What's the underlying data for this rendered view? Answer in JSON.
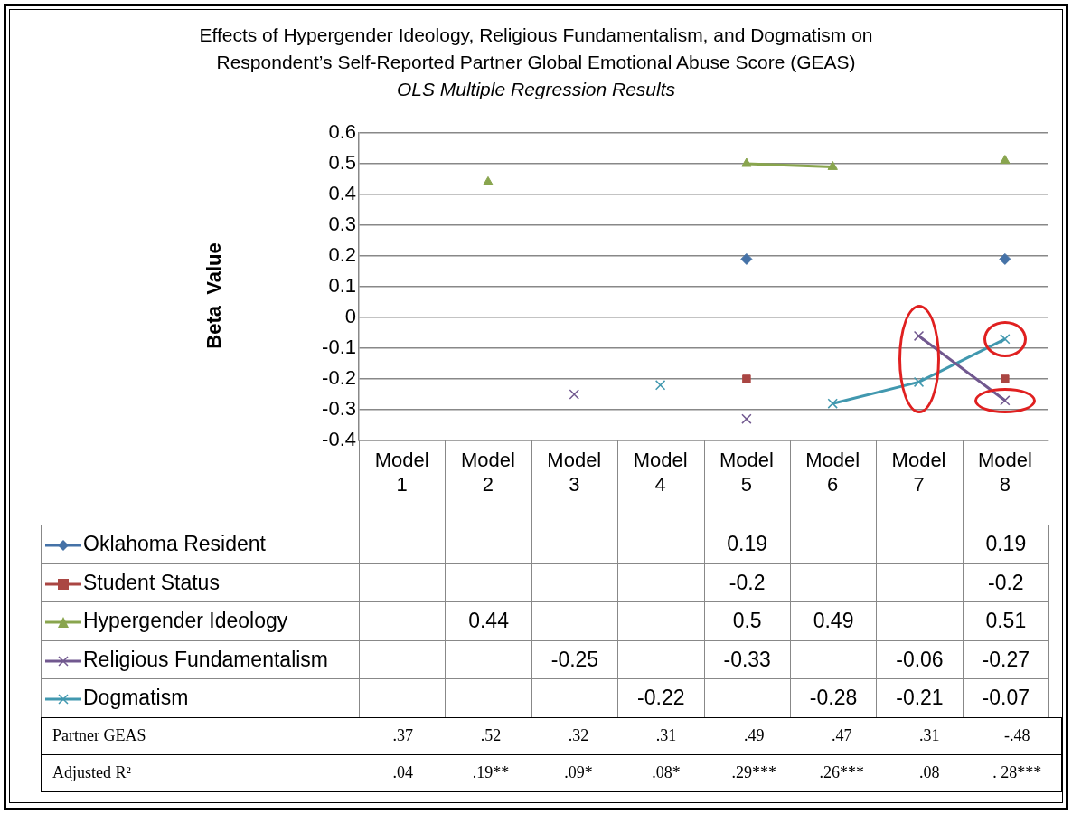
{
  "chart_data": {
    "type": "line",
    "title": "Effects of Hypergender Ideology, Religious Fundamentalism, and Dogmatism on Respondent’s Self-Reported Partner Global Emotional Abuse Score (GEAS)",
    "subtitle": "OLS Multiple Regression Results",
    "ylabel": "Beta  Value",
    "categories": [
      "Model 1",
      "Model 2",
      "Model 3",
      "Model 4",
      "Model 5",
      "Model 6",
      "Model 7",
      "Model 8"
    ],
    "series": [
      {
        "name": "Oklahoma Resident",
        "type": "scatter",
        "color": "#4572a7",
        "marker": "diamond",
        "values": [
          null,
          null,
          null,
          null,
          0.19,
          null,
          null,
          0.19
        ]
      },
      {
        "name": "Student Status",
        "type": "scatter",
        "color": "#aa4643",
        "marker": "square",
        "values": [
          null,
          null,
          null,
          null,
          -0.2,
          null,
          null,
          -0.2
        ]
      },
      {
        "name": "Hypergender Ideology",
        "color": "#89a54e",
        "marker": "triangle",
        "values": [
          null,
          0.44,
          null,
          null,
          0.5,
          0.49,
          null,
          0.51
        ]
      },
      {
        "name": "Religious Fundamentalism",
        "color": "#71588f",
        "marker": "cross",
        "values": [
          null,
          null,
          -0.25,
          null,
          -0.33,
          null,
          -0.06,
          -0.27
        ]
      },
      {
        "name": "Dogmatism",
        "color": "#4198af",
        "marker": "cross",
        "values": [
          null,
          null,
          null,
          -0.22,
          null,
          -0.28,
          -0.21,
          -0.07
        ]
      }
    ],
    "ylim": [
      -0.4,
      0.6
    ],
    "yticks": [
      -0.4,
      -0.3,
      -0.2,
      -0.1,
      0,
      0.1,
      0.2,
      0.3,
      0.4,
      0.5,
      0.6
    ],
    "grid": "y",
    "legend": "bottom",
    "data_labels": true,
    "annotations": [
      "Partner GEAS",
      ".37",
      ".52",
      ".32",
      ".31",
      ".49",
      ".47",
      ".31",
      "-.48",
      "Adjusted R²",
      ".04",
      ".19**",
      ".09*",
      ".08*",
      ".29***",
      ".26***",
      ".08",
      ". 28***"
    ]
  }
}
